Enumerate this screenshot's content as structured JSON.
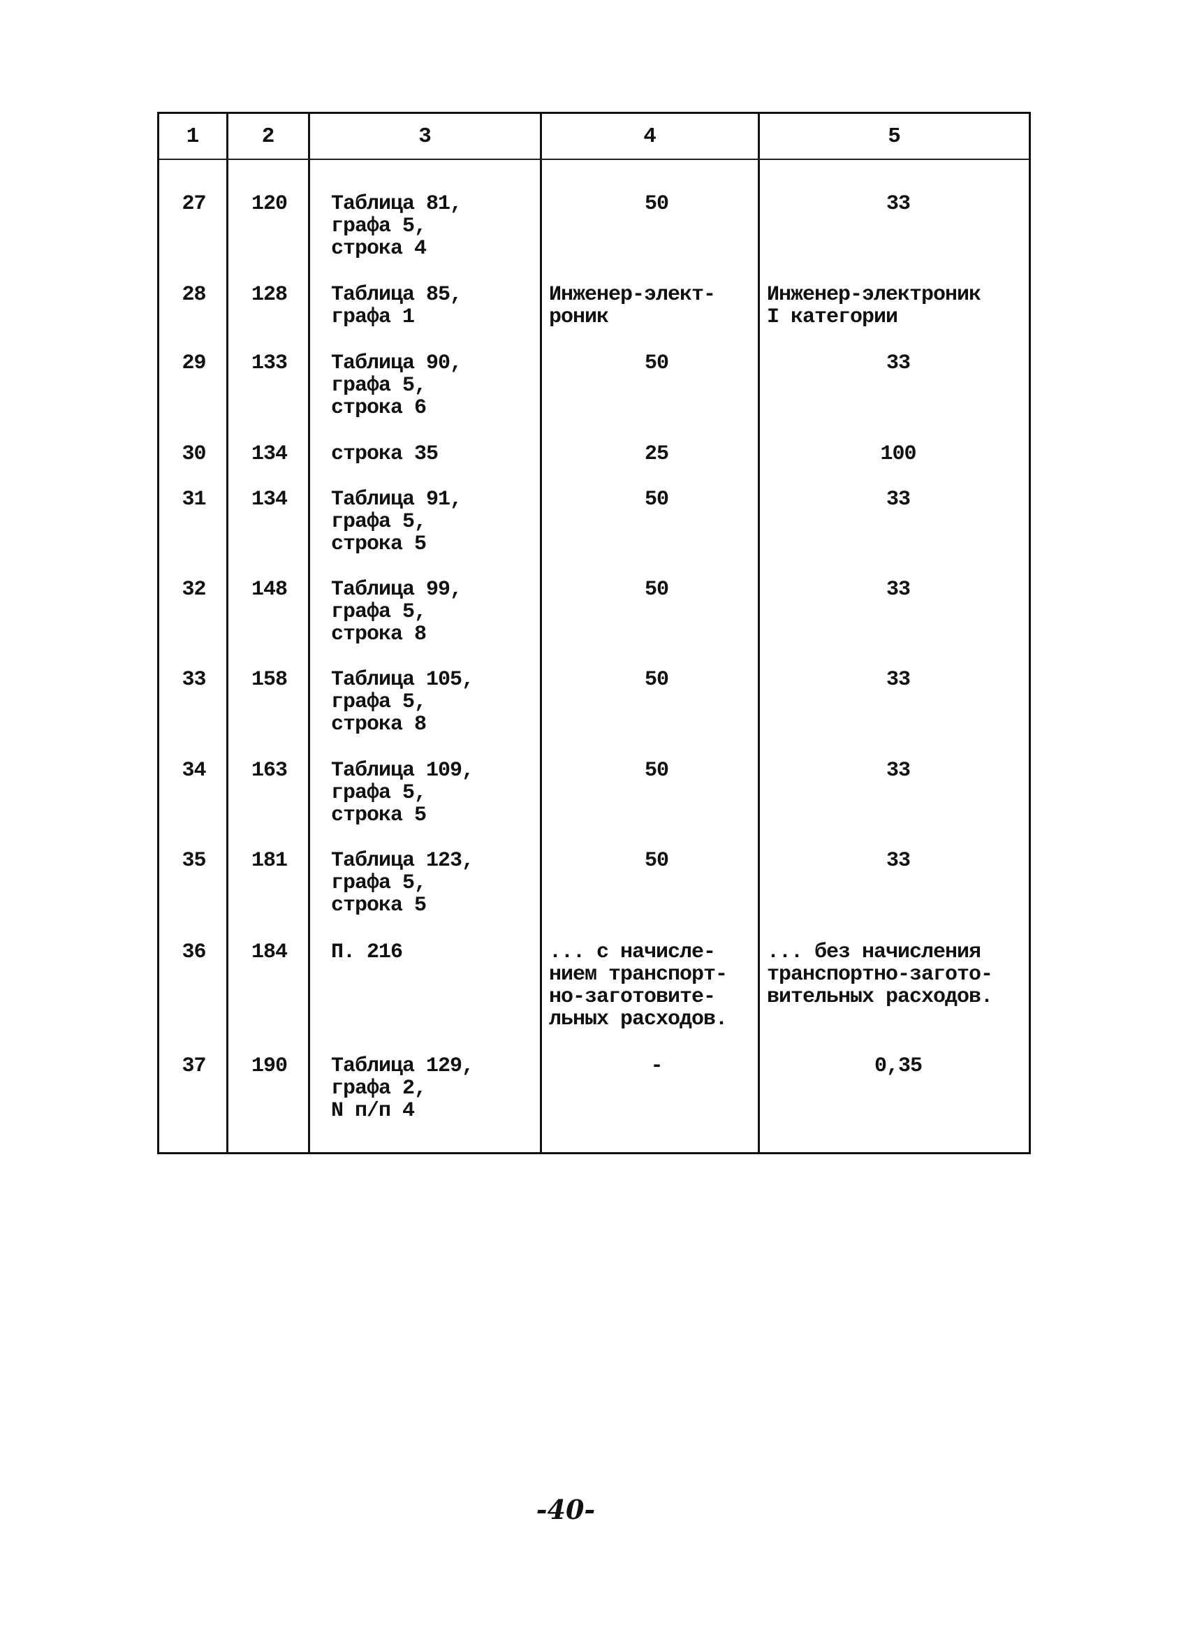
{
  "table": {
    "headers": [
      "1",
      "2",
      "3",
      "4",
      "5"
    ],
    "rows": [
      {
        "c1": "27",
        "c2": "120",
        "c3": "Таблица 81,\nграфа 5,\nстрока 4",
        "c4": "50",
        "c5": "33"
      },
      {
        "c1": "28",
        "c2": "128",
        "c3": "Таблица 85,\nграфа 1",
        "c4": "Инженер-элект-\nроник",
        "c5": "Инженер-электроник\nI категории"
      },
      {
        "c1": "29",
        "c2": "133",
        "c3": "Таблица 90,\nграфа 5,\nстрока 6",
        "c4": "50",
        "c5": "33"
      },
      {
        "c1": "30",
        "c2": "134",
        "c3": "строка 35",
        "c4": "25",
        "c5": "100"
      },
      {
        "c1": "31",
        "c2": "134",
        "c3": "Таблица 91,\nграфа 5,\nстрока 5",
        "c4": "50",
        "c5": "33"
      },
      {
        "c1": "32",
        "c2": "148",
        "c3": "Таблица 99,\nграфа 5,\nстрока 8",
        "c4": "50",
        "c5": "33"
      },
      {
        "c1": "33",
        "c2": "158",
        "c3": "Таблица 105,\nграфа 5,\nстрока 8",
        "c4": "50",
        "c5": "33"
      },
      {
        "c1": "34",
        "c2": "163",
        "c3": "Таблица 109,\nграфа 5,\nстрока 5",
        "c4": "50",
        "c5": "33"
      },
      {
        "c1": "35",
        "c2": "181",
        "c3": "Таблица 123,\nграфа 5,\nстрока 5",
        "c4": "50",
        "c5": "33"
      },
      {
        "c1": "36",
        "c2": "184",
        "c3": "П. 216",
        "c4": "... с начисле-\nнием транспорт-\nно-заготовите-\nльных расходов.",
        "c5": "... без начисления\nтранспортно-загото-\nвительных расходов."
      },
      {
        "c1": "37",
        "c2": "190",
        "c3": "Таблица 129,\nграфа 2,\nN п/п 4",
        "c4": "-",
        "c5": "0,35"
      }
    ]
  },
  "page_number": "-40-"
}
